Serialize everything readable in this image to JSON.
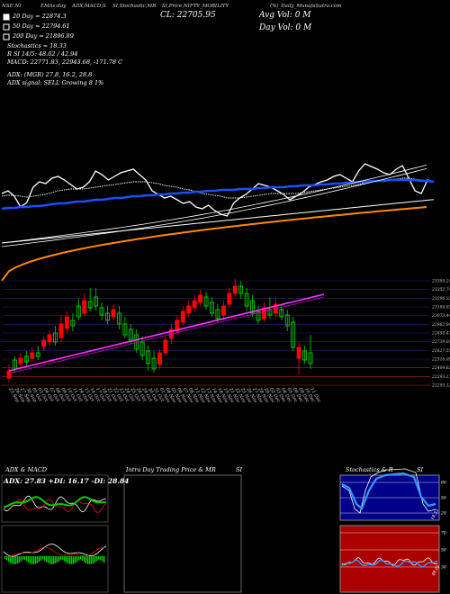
{
  "header": {
    "items": [
      "NSE:NI",
      "EMAs:day",
      "ADX,MACD,S",
      "SI,Stochastic,MR",
      "SI,Price,NIFTY_MOBILITY",
      "(%)_Daily_MunafaSutra.com"
    ],
    "cl": "CL: 22705.95",
    "avg_vol": "Avg Vol: 0  M",
    "day_vol": "Day Vol: 0  M"
  },
  "indicators": {
    "ema20": "20  Day  = 22874.3",
    "ema50": "50  Day  = 22794.61",
    "ema200": "200  Day  = 21896.89",
    "stochastics": "Stochastics = 18.33",
    "rsi": "R          SI 14/5: 48.02 / 42.94",
    "macd": "MACD: 22771.83, 22943.68, -171.78  C",
    "adx": "ADX:                        (MGR) 27.8, 16.2, 28.8",
    "adx_signal": "ADX  signal: SELL  Growing  8   1%"
  },
  "colors": {
    "up": "#00cc00",
    "down": "#ff0000",
    "ema_blue": "#1a4fff",
    "ema_orange": "#ff8800",
    "pink": "#ff33ff",
    "white": "#ffffff",
    "stoch_bg": "#000088",
    "rsi_bg": "#aa0000"
  },
  "chart_data": [
    {
      "type": "line",
      "name": "price-vs-emas",
      "series": [
        {
          "name": "price",
          "values": [
            55,
            52,
            58,
            70,
            65,
            48,
            42,
            44,
            38,
            36,
            40,
            45,
            50,
            48,
            42,
            30,
            34,
            40,
            36,
            32,
            30,
            28,
            34,
            40,
            52,
            56,
            60,
            58,
            62,
            66,
            64,
            70,
            72,
            68,
            74,
            78,
            80,
            66,
            60,
            56,
            50,
            44,
            46,
            48,
            52,
            56,
            62,
            58,
            54,
            48,
            45,
            42,
            40,
            36,
            34,
            38,
            42,
            30,
            22,
            25,
            28,
            32,
            34,
            28,
            24,
            38,
            52,
            55,
            40,
            42
          ]
        },
        {
          "name": "ema20",
          "values": [
            58,
            57,
            57,
            58,
            59,
            58,
            57,
            56,
            54,
            52,
            51,
            50,
            50,
            50,
            49,
            48,
            47,
            46,
            45,
            44,
            43,
            42,
            42,
            42,
            43,
            44,
            46,
            47,
            48,
            50,
            51,
            53,
            55,
            56,
            57,
            58,
            60,
            60,
            60,
            59,
            58,
            57,
            56,
            55,
            55,
            55,
            55,
            55,
            54,
            53,
            52,
            51,
            50,
            49,
            48,
            47,
            46,
            45,
            43,
            42,
            41,
            40,
            40,
            39,
            38,
            38,
            39,
            40,
            41,
            42
          ]
        },
        {
          "name": "ema50",
          "values": [
            72,
            71,
            71,
            70,
            70,
            69,
            69,
            68,
            67,
            66,
            66,
            65,
            64,
            64,
            63,
            62,
            62,
            61,
            60,
            60,
            59,
            58,
            58,
            57,
            57,
            56,
            56,
            55,
            55,
            54,
            54,
            53,
            53,
            52,
            52,
            51,
            51,
            51,
            50,
            50,
            50,
            49,
            49,
            48,
            48,
            48,
            47,
            47,
            46,
            46,
            46,
            45,
            45,
            44,
            44,
            43,
            43,
            42,
            42,
            41,
            41,
            41,
            40,
            40,
            40,
            40,
            40,
            41,
            41,
            42
          ]
        },
        {
          "name": "ema200",
          "values": [
            140,
            139,
            138,
            137,
            136,
            135,
            134,
            133,
            132,
            131,
            130,
            129,
            128,
            127,
            126,
            125,
            124,
            123,
            122,
            121,
            120,
            118,
            117,
            116,
            115,
            114,
            113,
            112,
            111,
            110,
            109,
            108,
            107,
            106,
            105,
            104,
            103,
            102,
            101,
            100,
            99,
            98,
            97,
            96,
            95,
            94,
            93,
            92,
            91,
            90,
            89,
            88,
            87,
            86,
            85,
            84,
            83,
            82,
            81,
            80,
            79,
            79,
            78,
            78,
            77,
            77,
            76,
            76,
            76,
            75
          ]
        }
      ]
    },
    {
      "type": "candlestick",
      "name": "price-candles",
      "price_ticks": [
        "23384.24",
        "23352.74",
        "23296.32",
        "23184.93",
        "23073.44",
        "22962.94",
        "22850.47",
        "22739.01",
        "22627.55",
        "22516.09",
        "22404.62",
        "22293.17",
        "22293.12"
      ],
      "dates": [
        "25 Sep",
        "26 Sep",
        "27 Sep",
        "30 Sep",
        "01 Oct",
        "03 Oct",
        "04 Oct",
        "07 Oct",
        "08 Oct",
        "09 Oct",
        "10 Oct",
        "11 Oct",
        "14 Oct",
        "15 Oct",
        "16 Oct",
        "17 Oct",
        "18 Oct",
        "21 Oct",
        "22 Oct",
        "23 Oct",
        "24 Oct",
        "25 Oct",
        "28 Oct",
        "29 Oct",
        "30 Oct",
        "31 Oct",
        "01 Nov",
        "04 Nov",
        "05 Nov",
        "06 Nov",
        "07 Nov",
        "08 Nov",
        "11 Nov",
        "12 Nov",
        "13 Nov",
        "14 Nov",
        "18 Nov",
        "19 Nov",
        "21 Nov",
        "22 Nov",
        "25 Nov",
        "26 Nov",
        "27 Nov",
        "28 Nov",
        "29 Nov",
        "02 Dec",
        "03 Dec",
        "04 Dec",
        "05 Dec",
        "06 Dec",
        "09 Dec",
        "10 Dec",
        "11 Dec"
      ]
    },
    {
      "type": "line",
      "name": "adx-macd",
      "title": "ADX  & MACD",
      "readout": "ADX: 27.83  +DI: 16.17  -DI: 28.84"
    },
    {
      "type": "line",
      "name": "intraday",
      "title": "Intra  Day  Trading  Price  & MR",
      "title_suffix": "SI"
    },
    {
      "type": "line",
      "name": "stochastics",
      "title": "Stochastics & R",
      "title_suffix": "SI",
      "stoch_ticks": [
        "80",
        "50",
        "20"
      ],
      "stoch_value": "18.33",
      "rsi_ticks": [
        "70",
        "50",
        "30"
      ],
      "rsi_value": "48.02"
    }
  ]
}
